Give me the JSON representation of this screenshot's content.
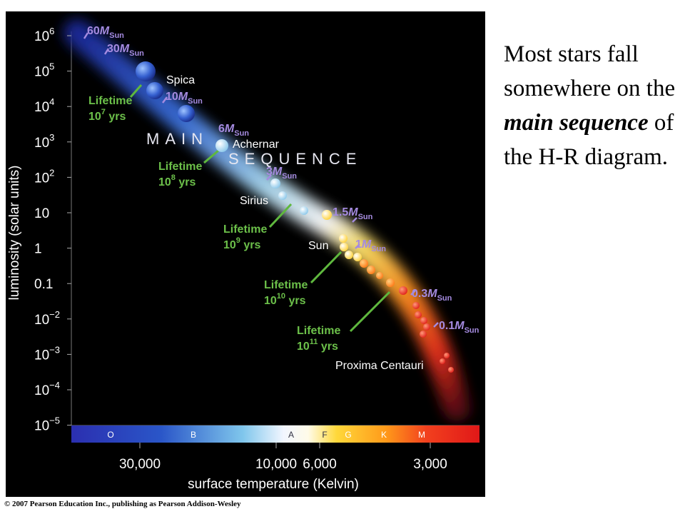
{
  "diagram": {
    "y_axis_label": "luminosity (solar units)",
    "x_axis_label": "surface temperature (Kelvin)",
    "y_ticks": [
      {
        "base": "10",
        "exp": "6"
      },
      {
        "base": "10",
        "exp": "5"
      },
      {
        "base": "10",
        "exp": "4"
      },
      {
        "base": "10",
        "exp": "3"
      },
      {
        "base": "10",
        "exp": "2"
      },
      {
        "base": "10",
        "exp": ""
      },
      {
        "base": "1",
        "exp": ""
      },
      {
        "base": "0.1",
        "exp": ""
      },
      {
        "base": "10",
        "exp": "−2"
      },
      {
        "base": "10",
        "exp": "−3"
      },
      {
        "base": "10",
        "exp": "−4"
      },
      {
        "base": "10",
        "exp": "−5"
      }
    ],
    "x_ticks": [
      "30,000",
      "10,000",
      "6,000",
      "3,000"
    ],
    "spectral_classes": [
      "O",
      "B",
      "A",
      "F",
      "G",
      "K",
      "M"
    ],
    "band_words": [
      "MAIN",
      "SEQUENCE"
    ],
    "stars": [
      "Spica",
      "Achernar",
      "Sirius",
      "Sun",
      "Proxima Centauri"
    ],
    "masses": [
      {
        "value": "60",
        "unit": "M",
        "sub": "Sun"
      },
      {
        "value": "30",
        "unit": "M",
        "sub": "Sun"
      },
      {
        "value": "10",
        "unit": "M",
        "sub": "Sun"
      },
      {
        "value": "6",
        "unit": "M",
        "sub": "Sun"
      },
      {
        "value": "3",
        "unit": "M",
        "sub": "Sun"
      },
      {
        "value": "1.5",
        "unit": "M",
        "sub": "Sun"
      },
      {
        "value": "1",
        "unit": "M",
        "sub": "Sun"
      },
      {
        "value": "0.3",
        "unit": "M",
        "sub": "Sun"
      },
      {
        "value": "0.1",
        "unit": "M",
        "sub": "Sun"
      }
    ],
    "lifetimes": [
      {
        "label": "Lifetime",
        "base": "10",
        "exp": "7",
        "unit": "yrs"
      },
      {
        "label": "Lifetime",
        "base": "10",
        "exp": "8",
        "unit": "yrs"
      },
      {
        "label": "Lifetime",
        "base": "10",
        "exp": "9",
        "unit": "yrs"
      },
      {
        "label": "Lifetime",
        "base": "10",
        "exp": "10",
        "unit": "yrs"
      },
      {
        "label": "Lifetime",
        "base": "10",
        "exp": "11",
        "unit": "yrs"
      }
    ],
    "colors": {
      "lifetime_text": "#6cc04a",
      "mass_text": "#a58be0",
      "band_word": "#e6e6f0",
      "background": "#000000"
    }
  },
  "caption": {
    "part1": "Most stars fall somewhere on the ",
    "em1": "main",
    "space": " ",
    "em2": "sequence",
    "part2": " of the H-R diagram."
  },
  "copyright": "© 2007 Pearson Education Inc., publishing as Pearson Addison-Wesley"
}
